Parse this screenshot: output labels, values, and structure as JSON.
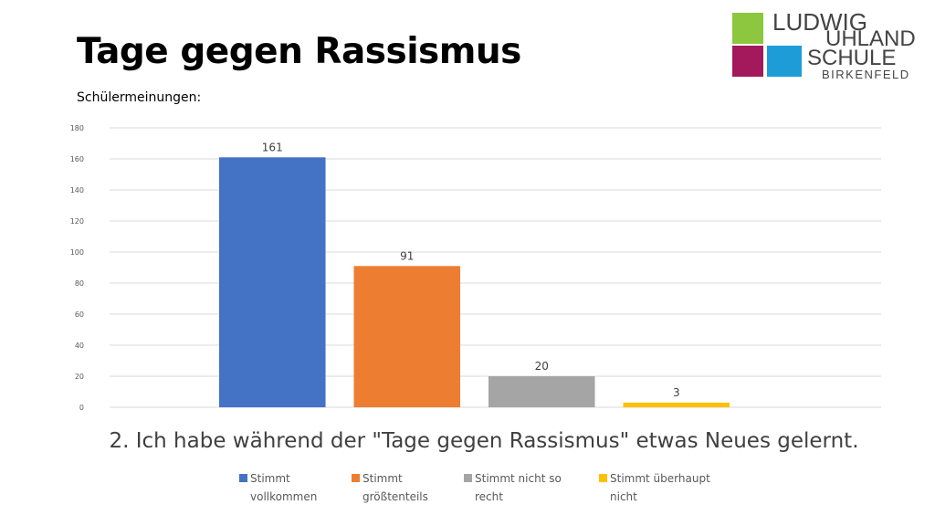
{
  "slide": {
    "title": "Tage gegen Rassismus",
    "subtitle": "Schülermeinungen:",
    "question": "2. Ich habe während der \"Tage gegen Rassismus\" etwas Neues gelernt."
  },
  "logo": {
    "line1": "LUDWIG",
    "line2": "UHLAND",
    "line3": "SCHULE",
    "line4": "BIRKENFELD",
    "colors": {
      "green": "#8DC63F",
      "magenta": "#A3195B",
      "blue": "#1E9CD8"
    }
  },
  "chart_data": {
    "type": "bar",
    "title": "2. Ich habe während der \"Tage gegen Rassismus\" etwas Neues gelernt.",
    "xlabel": "",
    "ylabel": "",
    "ylim": [
      0,
      180
    ],
    "yticks": [
      0,
      20,
      40,
      60,
      80,
      100,
      120,
      140,
      160,
      180
    ],
    "grid": true,
    "legend_position": "bottom",
    "series": [
      {
        "name": "Stimmt vollkommen",
        "value": 161,
        "color": "#4472C4"
      },
      {
        "name": "Stimmt größtenteils",
        "value": 91,
        "color": "#ED7D31"
      },
      {
        "name": "Stimmt nicht so recht",
        "value": 20,
        "color": "#A5A5A5"
      },
      {
        "name": "Stimmt überhaupt nicht",
        "value": 3,
        "color": "#FFC000"
      }
    ]
  }
}
